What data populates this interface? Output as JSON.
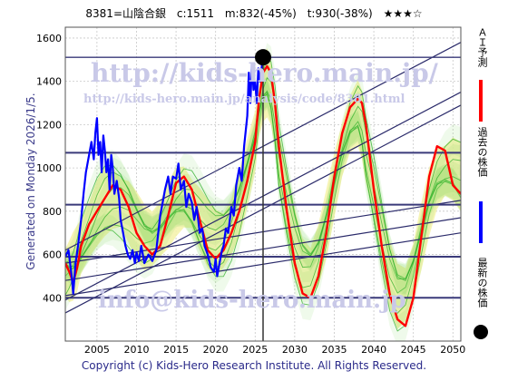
{
  "header": {
    "code_name": "8381=山陰合銀",
    "current": "c:1511",
    "mid": "m:832(-45%)",
    "target": "t:930(-38%)",
    "stars": "★★★☆"
  },
  "side_label": "Generated on Monday 2026/1/5.",
  "copyright": "Copyright (c) Kids-Hero Research Institute. All Rights Reserved.",
  "watermarks": {
    "url": "http://kids-hero.main.jp/",
    "analysis_url": "http://kids-hero.main.jp/analysis/code/8381.html",
    "email": "info@kids-hero.main.jp"
  },
  "legend": {
    "ai_forecast": "ＡＩ予測",
    "past_price": "過去の株価",
    "latest_price": "最新の株価",
    "colors": {
      "ai_forecast": "#ff0000",
      "past_price": "#0000ff",
      "latest_price": "#000000"
    }
  },
  "chart_data": {
    "type": "line",
    "xlim": [
      2001,
      2051
    ],
    "ylim": [
      200,
      1650
    ],
    "x_ticks": [
      2005,
      2010,
      2015,
      2020,
      2025,
      2030,
      2035,
      2040,
      2045,
      2050
    ],
    "y_ticks": [
      200,
      400,
      600,
      800,
      1000,
      1200,
      1400,
      1600
    ],
    "horizontal_levels": [
      400,
      590,
      830,
      1070,
      1511
    ],
    "latest_point": {
      "x": 2026.0,
      "y": 1511
    },
    "series": [
      {
        "name": "過去の株価",
        "color": "#0000ff",
        "x": [
          2001.0,
          2001.4,
          2001.8,
          2002.0,
          2002.3,
          2002.6,
          2002.8,
          2003.0,
          2003.3,
          2003.6,
          2004.0,
          2004.3,
          2004.6,
          2004.8,
          2005.0,
          2005.2,
          2005.4,
          2005.6,
          2005.8,
          2006.0,
          2006.2,
          2006.4,
          2006.6,
          2006.8,
          2007.0,
          2007.2,
          2007.5,
          2007.8,
          2008.0,
          2008.3,
          2008.6,
          2008.9,
          2009.2,
          2009.5,
          2009.8,
          2010.0,
          2010.3,
          2010.6,
          2011.0,
          2011.5,
          2012.0,
          2012.5,
          2013.0,
          2013.3,
          2013.6,
          2014.0,
          2014.3,
          2014.6,
          2015.0,
          2015.3,
          2015.6,
          2016.0,
          2016.3,
          2016.6,
          2017.0,
          2017.3,
          2017.6,
          2018.0,
          2018.3,
          2018.6,
          2019.0,
          2019.4,
          2019.8,
          2020.0,
          2020.2,
          2020.5,
          2020.8,
          2021.0,
          2021.3,
          2021.6,
          2022.0,
          2022.3,
          2022.6,
          2023.0,
          2023.3,
          2023.6,
          2024.0,
          2024.2,
          2024.4,
          2024.6,
          2024.8,
          2025.0,
          2025.2,
          2025.4,
          2025.6,
          2025.8,
          2026.0
        ],
        "y": [
          590,
          620,
          500,
          420,
          560,
          640,
          700,
          760,
          880,
          980,
          1060,
          1120,
          1040,
          1160,
          1230,
          1060,
          1120,
          980,
          1150,
          1080,
          980,
          1040,
          900,
          1060,
          1000,
          880,
          940,
          860,
          760,
          700,
          640,
          600,
          580,
          620,
          560,
          610,
          570,
          640,
          560,
          600,
          570,
          620,
          780,
          840,
          900,
          960,
          880,
          960,
          950,
          1020,
          900,
          940,
          820,
          880,
          840,
          760,
          820,
          700,
          720,
          640,
          600,
          540,
          520,
          580,
          500,
          560,
          620,
          640,
          720,
          700,
          820,
          780,
          920,
          1000,
          940,
          1100,
          1240,
          1440,
          1300,
          1480,
          1360,
          1400,
          1300,
          1460,
          1400,
          1460,
          1511
        ]
      },
      {
        "name": "ＡＩ予測",
        "color": "#ff0000",
        "x": [
          2001.0,
          2001.5,
          2002.0,
          2002.5,
          2003.0,
          2004.0,
          2005.0,
          2006.0,
          2007.0,
          2008.0,
          2009.0,
          2010.0,
          2011.0,
          2012.0,
          2013.0,
          2014.0,
          2015.0,
          2016.0,
          2017.0,
          2018.0,
          2019.0,
          2020.0,
          2021.0,
          2022.0,
          2023.0,
          2024.0,
          2025.0,
          2025.5,
          2026.0,
          2026.5,
          2027.0,
          2027.5,
          2028.0,
          2029.0,
          2030.0,
          2031.0,
          2032.0,
          2033.0,
          2034.0,
          2035.0,
          2036.0,
          2037.0,
          2038.0,
          2038.5,
          2039.0,
          2040.0,
          2041.0,
          2042.0,
          2043.0,
          2044.0,
          2045.0,
          2046.0,
          2047.0,
          2048.0,
          2049.0,
          2050.0,
          2051.0
        ],
        "y": [
          560,
          520,
          470,
          540,
          640,
          740,
          800,
          860,
          920,
          900,
          820,
          700,
          640,
          600,
          640,
          780,
          930,
          960,
          900,
          760,
          620,
          580,
          620,
          700,
          800,
          940,
          1120,
          1320,
          1440,
          1470,
          1440,
          1300,
          1100,
          800,
          560,
          420,
          400,
          500,
          700,
          960,
          1160,
          1280,
          1320,
          1300,
          1200,
          900,
          640,
          420,
          300,
          270,
          400,
          680,
          960,
          1100,
          1080,
          920,
          880
        ]
      }
    ]
  }
}
